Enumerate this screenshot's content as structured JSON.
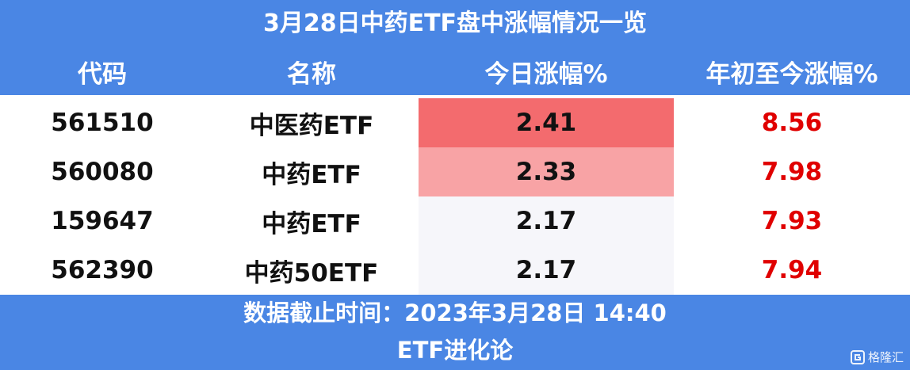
{
  "header": {
    "title": "3月28日中药ETF盘中涨幅情况一览",
    "columns": [
      "代码",
      "名称",
      "今日涨幅%",
      "年初至今涨幅%"
    ]
  },
  "table": {
    "rows": [
      [
        "561510",
        "中医药ETF",
        "2.41",
        "8.56"
      ],
      [
        "560080",
        "中药ETF",
        "2.33",
        "7.98"
      ],
      [
        "159647",
        "中药ETF",
        "2.17",
        "7.93"
      ],
      [
        "562390",
        "中药50ETF",
        "2.17",
        "7.94"
      ]
    ]
  },
  "footer": {
    "lines": [
      "数据截止时间：2023年3月28日 14:40",
      "ETF进化论"
    ]
  },
  "watermark": "格隆汇"
}
